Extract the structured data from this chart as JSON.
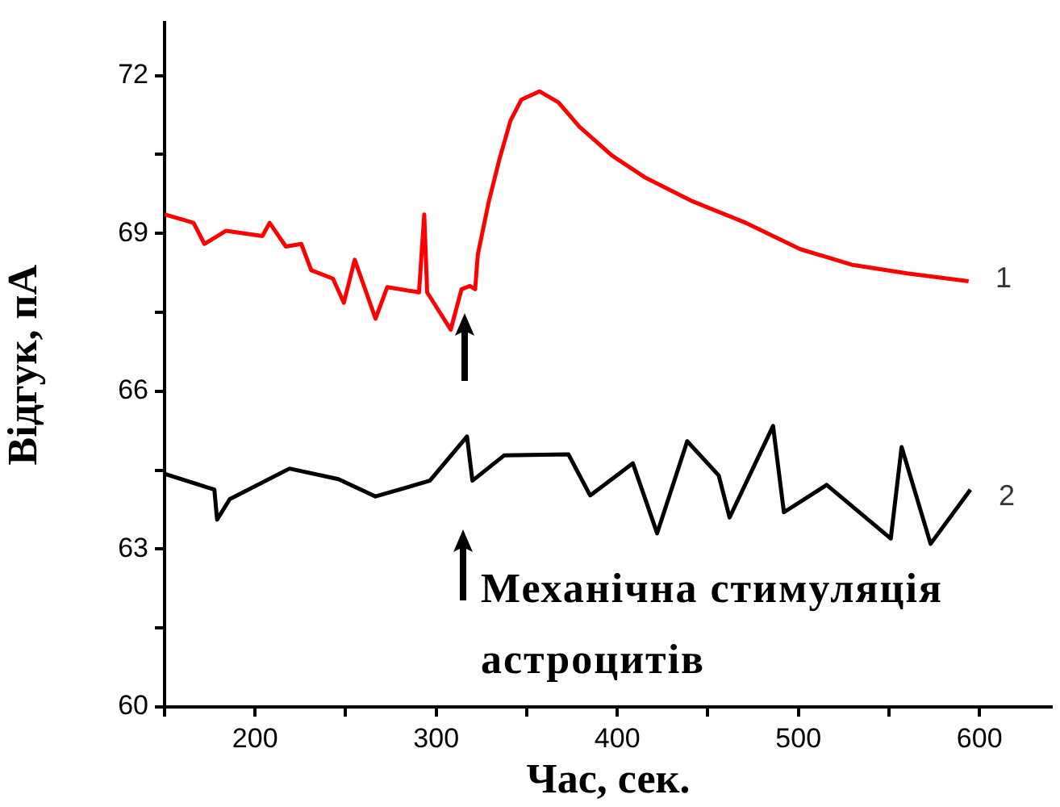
{
  "chart_data": {
    "type": "line",
    "xlabel": "Час, сек.",
    "ylabel": "Відгук, пА",
    "xlim": [
      150,
      640
    ],
    "xticks": [
      {
        "value": 150,
        "label": null
      },
      200,
      {
        "value": 250,
        "label": null
      },
      300,
      {
        "value": 350,
        "label": null
      },
      400,
      {
        "value": 450,
        "label": null
      },
      500,
      {
        "value": 550,
        "label": null
      },
      600
    ],
    "ylim": [
      60,
      73
    ],
    "yticks": [
      60,
      {
        "value": 61.5,
        "label": null
      },
      63,
      {
        "value": 64.5,
        "label": null
      },
      66,
      {
        "value": 67.5,
        "label": null
      },
      69,
      {
        "value": 70.5,
        "label": null
      },
      72
    ],
    "grid": false,
    "legend": false,
    "marker": "none",
    "line_style": "solid",
    "series": [
      {
        "color": "#ff0000",
        "x": [
          150,
          166,
          172,
          184,
          204,
          208,
          217,
          225.5,
          231,
          243,
          249,
          255,
          266.5,
          273,
          290.5,
          293.4,
          295,
          308,
          314,
          318.6,
          321.5,
          323,
          329,
          335,
          341,
          347,
          357,
          367.5,
          379,
          397,
          415,
          441.5,
          471,
          501,
          530,
          560,
          594
        ],
        "values": [
          69.36,
          69.2,
          68.8,
          69.05,
          68.95,
          69.2,
          68.75,
          68.8,
          68.3,
          68.14,
          67.68,
          68.5,
          67.38,
          67.98,
          67.88,
          69.36,
          67.88,
          67.17,
          67.94,
          68.0,
          67.94,
          68.6,
          69.6,
          70.42,
          71.14,
          71.54,
          71.7,
          71.49,
          71.03,
          70.48,
          70.07,
          69.61,
          69.2,
          68.7,
          68.4,
          68.24,
          68.09
        ]
      },
      {
        "color": "#000000",
        "x": [
          150,
          177.5,
          179,
          186,
          219,
          246,
          266.5,
          296.5,
          317,
          320,
          337.5,
          373,
          385,
          408.6,
          422,
          438.6,
          456,
          462,
          486,
          492,
          515.6,
          551,
          557,
          573,
          595
        ],
        "values": [
          64.43,
          64.13,
          63.56,
          63.95,
          64.53,
          64.33,
          64.0,
          64.3,
          65.14,
          64.3,
          64.78,
          64.8,
          64.02,
          64.63,
          63.3,
          65.05,
          64.4,
          63.6,
          65.34,
          63.7,
          64.22,
          63.2,
          64.94,
          63.1,
          64.13
        ]
      }
    ],
    "annotations": [
      "1",
      "2",
      "Механічна стимуляція астроцитів"
    ]
  }
}
